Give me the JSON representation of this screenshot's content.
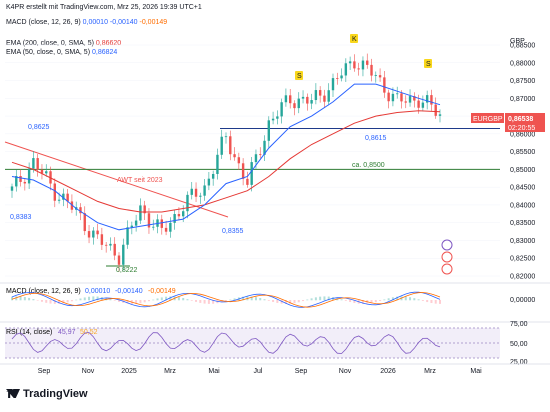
{
  "header": {
    "line1": "K4PR erstellt mit TradingView.com, Mrz 25, 2026 19:39 UTC+1",
    "macd_title": "MACD (close, 12, 26, 9)",
    "macd_v1": "0,00010",
    "macd_v2": "-0,00140",
    "macd_v3": "-0,00149",
    "ema200_title": "EMA (200, close, 0, SMA, 5)",
    "ema200_val": "0,86620",
    "ema50_title": "EMA (50, close, 0, SMA, 5)",
    "ema50_val": "0,86824"
  },
  "colors": {
    "up": "#26a69a",
    "down": "#ef5350",
    "ema200": "#e53935",
    "ema50": "#2962ff",
    "support": "#1e3a8a",
    "green_line": "#2e7d32",
    "rsi": "#7e57c2",
    "macd_line": "#2962ff",
    "signal": "#ff6d00"
  },
  "price_axis": {
    "currency": "GBP",
    "ticks": [
      "0,88500",
      "0,88000",
      "0,87500",
      "0,87000",
      "0,86500",
      "0,86000",
      "0,85500",
      "0,85000",
      "0,84500",
      "0,84000",
      "0,83500",
      "0,83000",
      "0,82500",
      "0,82000"
    ]
  },
  "last_price": {
    "symbol": "EURGBP",
    "value": "0,86538",
    "countdown": "02:20:55"
  },
  "annotations": {
    "a1": "0,8625",
    "a2": "0,8383",
    "a3": "0,8222",
    "a4": "0,8355",
    "a5": "0,8615",
    "a6": "ca. 0,8500",
    "awt": "AWT seit 2023",
    "k": "K",
    "s1": "S",
    "s2": "S"
  },
  "time_axis": [
    "Sep",
    "Nov",
    "2025",
    "Mrz",
    "Mai",
    "Jul",
    "Sep",
    "Nov",
    "2026",
    "Mrz",
    "Mai"
  ],
  "macd_panel": {
    "title": "MACD (close, 12, 26, 9)",
    "v1": "0,00010",
    "v2": "-0,00140",
    "v3": "-0,00149",
    "tick": "0,00000"
  },
  "rsi_panel": {
    "title": "RSI (14, close)",
    "v1": "45,97",
    "v2": "50,52",
    "ticks": [
      "75,00",
      "50,00",
      "25,00"
    ]
  },
  "chart_data": {
    "type": "line",
    "title": "",
    "symbol": "EURGBP",
    "series": [
      {
        "name": "EURGBP",
        "x": [
          "2024-07",
          "2024-08",
          "2024-09",
          "2024-10",
          "2024-11",
          "2024-12",
          "2025-01",
          "2025-02",
          "2025-03",
          "2025-04",
          "2025-05",
          "2025-06",
          "2025-07",
          "2025-08",
          "2025-09",
          "2025-10",
          "2025-11",
          "2025-12",
          "2026-01",
          "2026-02",
          "2026-03"
        ],
        "values": [
          0.844,
          0.852,
          0.844,
          0.838,
          0.83,
          0.826,
          0.839,
          0.832,
          0.84,
          0.845,
          0.859,
          0.846,
          0.863,
          0.87,
          0.869,
          0.874,
          0.881,
          0.876,
          0.869,
          0.87,
          0.8654
        ]
      },
      {
        "name": "EMA (200, close, 0, SMA, 5)",
        "values": [
          0.852,
          0.85,
          0.847,
          0.844,
          0.841,
          0.839,
          0.838,
          0.838,
          0.839,
          0.84,
          0.842,
          0.844,
          0.848,
          0.853,
          0.857,
          0.86,
          0.863,
          0.865,
          0.866,
          0.8665,
          0.8662
        ]
      },
      {
        "name": "EMA (50, close, 0, SMA, 5)",
        "values": [
          0.848,
          0.847,
          0.844,
          0.839,
          0.835,
          0.833,
          0.834,
          0.835,
          0.836,
          0.84,
          0.846,
          0.848,
          0.856,
          0.862,
          0.865,
          0.869,
          0.874,
          0.874,
          0.872,
          0.87,
          0.8682
        ]
      }
    ],
    "ylim": [
      0.82,
      0.885
    ],
    "levels": [
      0.8615,
      0.85
    ],
    "grid": true
  }
}
